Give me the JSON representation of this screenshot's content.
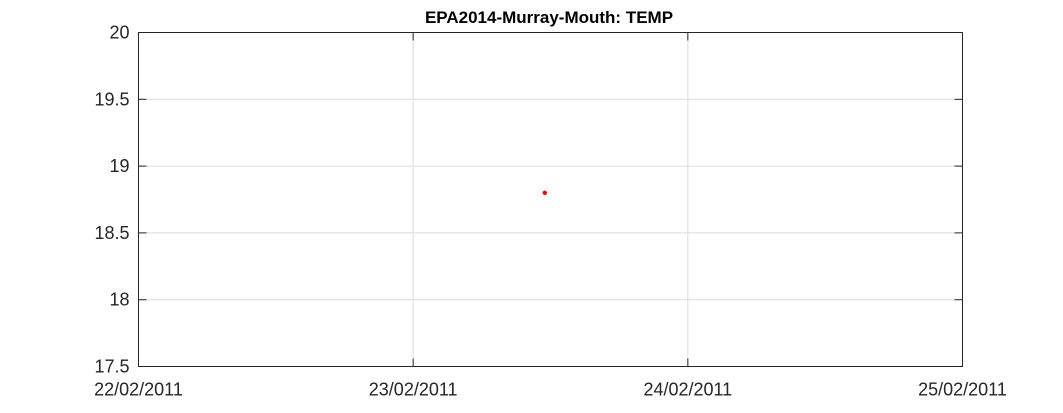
{
  "chart_data": {
    "type": "scatter",
    "title": "EPA2014-Murray-Mouth: TEMP",
    "xlabel": "",
    "ylabel": "",
    "x_type": "date",
    "xlim": [
      "22/02/2011",
      "25/02/2011"
    ],
    "ylim": [
      17.5,
      20
    ],
    "x_ticks": [
      "22/02/2011",
      "23/02/2011",
      "24/02/2011",
      "25/02/2011"
    ],
    "y_ticks": [
      "17.5",
      "18",
      "18.5",
      "19",
      "19.5",
      "20"
    ],
    "grid": true,
    "series": [
      {
        "color": "#ff0000",
        "points": [
          {
            "x": "23/02/2011 11:30",
            "y": 18.8
          }
        ]
      }
    ]
  }
}
